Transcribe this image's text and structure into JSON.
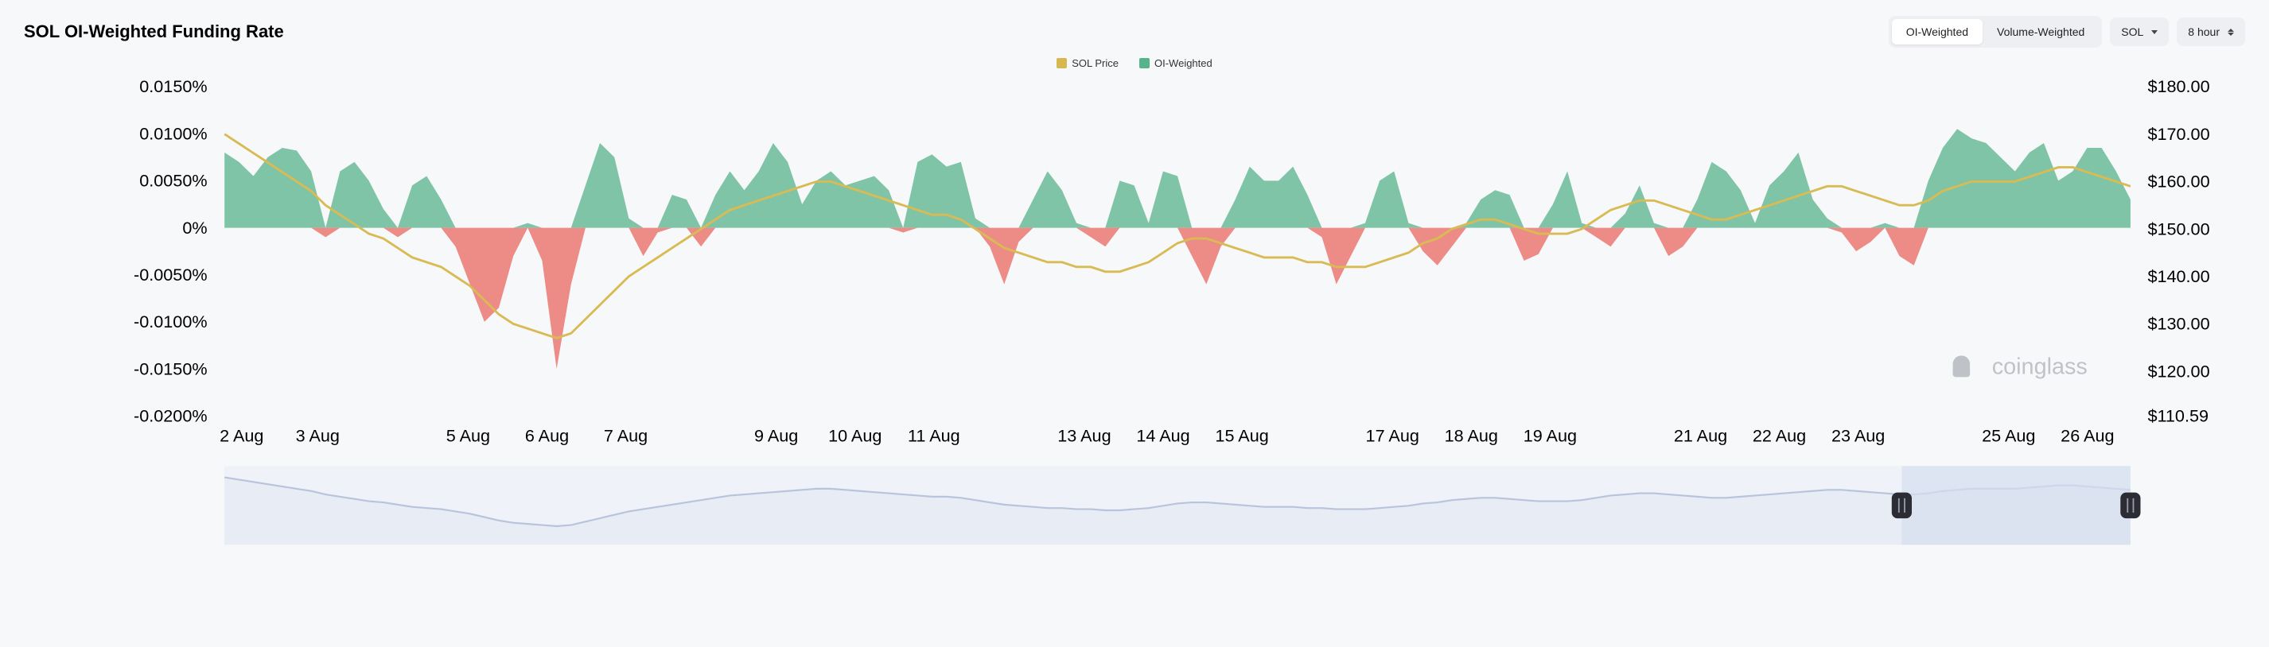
{
  "title": "SOL OI-Weighted Funding Rate",
  "tabs": {
    "oi": "OI-Weighted",
    "vol": "Volume-Weighted",
    "active": "oi"
  },
  "asset_dropdown": {
    "label": "SOL"
  },
  "interval_dropdown": {
    "label": "8 hour"
  },
  "legend": {
    "price": {
      "label": "SOL Price",
      "color": "#d7b84f"
    },
    "oi": {
      "label": "OI-Weighted",
      "color": "#57b38c"
    }
  },
  "watermark": "coinglass",
  "colors": {
    "pos_fill": "#7fc4a6",
    "neg_fill": "#ed8b86",
    "price_line": "#d9bb55",
    "nav_line": "#b9c4dc",
    "nav_fill": "#e7ecf5",
    "nav_mask": "#d6dff0",
    "background": "#f7f8fa",
    "tick_text": "#000000",
    "handle": "#2b2c34"
  },
  "chart": {
    "type": "area+line",
    "left_axis": {
      "ticks": [
        "0.0150%",
        "0.0100%",
        "0.0050%",
        "0%",
        "-0.0050%",
        "-0.0100%",
        "-0.0150%",
        "-0.0200%"
      ],
      "values": [
        0.015,
        0.01,
        0.005,
        0,
        -0.005,
        -0.01,
        -0.015,
        -0.02
      ],
      "min": -0.02,
      "max": 0.015
    },
    "right_axis": {
      "ticks": [
        "$180.00",
        "$170.00",
        "$160.00",
        "$150.00",
        "$140.00",
        "$130.00",
        "$120.00",
        "$110.59"
      ],
      "values": [
        180,
        170,
        160,
        150,
        140,
        130,
        120,
        110.59
      ],
      "min": 110.59,
      "max": 180
    },
    "x_ticks": [
      "2 Aug",
      "3 Aug",
      "5 Aug",
      "6 Aug",
      "7 Aug",
      "9 Aug",
      "10 Aug",
      "11 Aug",
      "13 Aug",
      "14 Aug",
      "15 Aug",
      "17 Aug",
      "18 Aug",
      "19 Aug",
      "21 Aug",
      "22 Aug",
      "23 Aug",
      "25 Aug",
      "26 Aug"
    ],
    "x_tick_pos": [
      0.012,
      0.065,
      0.17,
      0.225,
      0.28,
      0.385,
      0.44,
      0.495,
      0.6,
      0.655,
      0.71,
      0.815,
      0.87,
      0.925,
      1.03,
      1.085,
      1.14,
      1.245,
      1.3
    ],
    "x_range": [
      0,
      1.33
    ],
    "funding": [
      0.008,
      0.007,
      0.0055,
      0.0075,
      0.0085,
      0.0082,
      0.006,
      -0.001,
      0.006,
      0.007,
      0.005,
      0.002,
      -0.001,
      0.0045,
      0.0055,
      0.003,
      -0.002,
      -0.006,
      -0.01,
      -0.0085,
      -0.003,
      0.0005,
      -0.0035,
      -0.015,
      -0.006,
      0.0045,
      0.009,
      0.0075,
      0.001,
      -0.003,
      -0.0005,
      0.0035,
      0.003,
      -0.002,
      0.0035,
      0.006,
      0.004,
      0.006,
      0.009,
      0.007,
      0.0025,
      0.005,
      0.006,
      0.0045,
      0.005,
      0.0055,
      0.004,
      -0.0005,
      0.007,
      0.0078,
      0.0065,
      0.007,
      0.001,
      -0.002,
      -0.006,
      -0.0015,
      0.003,
      0.006,
      0.004,
      0.0005,
      -0.001,
      -0.002,
      0.005,
      0.0045,
      0.0005,
      0.006,
      0.0055,
      -0.003,
      -0.006,
      -0.002,
      0.003,
      0.0065,
      0.005,
      0.005,
      0.0065,
      0.0035,
      -0.001,
      -0.006,
      -0.003,
      0.0005,
      0.005,
      0.006,
      0.0005,
      -0.0025,
      -0.004,
      -0.002,
      0.0005,
      0.003,
      0.004,
      0.0035,
      -0.0035,
      -0.0028,
      0.0025,
      0.006,
      0.0005,
      -0.001,
      -0.002,
      0.0015,
      0.0045,
      0.0005,
      -0.003,
      -0.002,
      0.003,
      0.007,
      0.006,
      0.004,
      0.0005,
      0.0045,
      0.006,
      0.008,
      0.003,
      0.001,
      -0.0005,
      -0.0025,
      -0.0015,
      0.0005,
      -0.003,
      -0.004,
      0.005,
      0.0085,
      0.0105,
      0.0095,
      0.009,
      0.0075,
      0.006,
      0.008,
      0.009,
      0.005,
      0.006,
      0.0085,
      0.0085,
      0.006,
      0.003
    ],
    "price": [
      170,
      168,
      166,
      164,
      162,
      160,
      158,
      155,
      153,
      151,
      149,
      148,
      146,
      144,
      143,
      142,
      140,
      138,
      135,
      132,
      130,
      129,
      128,
      127,
      128,
      131,
      134,
      137,
      140,
      142,
      144,
      146,
      148,
      150,
      152,
      154,
      155,
      156,
      157,
      158,
      159,
      160,
      160,
      159,
      158,
      157,
      156,
      155,
      154,
      153,
      153,
      152,
      150,
      148,
      146,
      145,
      144,
      143,
      143,
      142,
      142,
      141,
      141,
      142,
      143,
      145,
      147,
      148,
      148,
      147,
      146,
      145,
      144,
      144,
      144,
      143,
      143,
      142,
      142,
      142,
      143,
      144,
      145,
      147,
      148,
      150,
      151,
      152,
      152,
      151,
      150,
      149,
      149,
      149,
      150,
      152,
      154,
      155,
      156,
      156,
      155,
      154,
      153,
      152,
      152,
      153,
      154,
      155,
      156,
      157,
      158,
      159,
      159,
      158,
      157,
      156,
      155,
      155,
      156,
      158,
      159,
      160,
      160,
      160,
      160,
      161,
      162,
      163,
      163,
      162,
      161,
      160,
      159
    ],
    "navigator_brush": {
      "start": 0.88,
      "end": 1.0
    },
    "label_fontsize": 12,
    "title_fontsize": 22
  }
}
